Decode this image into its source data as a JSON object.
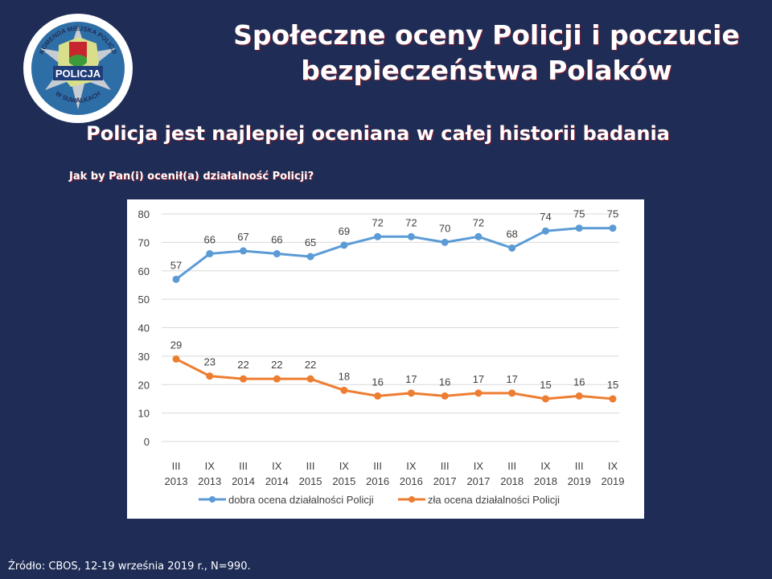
{
  "logo": {
    "top_text": "KOMENDA MIEJSKA POLICJI",
    "center_text": "POLICJA",
    "bottom_text": "W SUWAŁKACH"
  },
  "header": {
    "title_line1": "Społeczne oceny Policji i poczucie",
    "title_line2": "bezpieczeństwa Polaków",
    "subtitle": "Policja jest najlepiej oceniana w całej historii badania",
    "question": "Jak by Pan(i) ocenił(a) działalność Policji?"
  },
  "footer": {
    "source": "Źródło: CBOS, 12-19 września 2019 r., N=990."
  },
  "chart_data": {
    "type": "line",
    "title": "",
    "xlabel": "",
    "ylabel": "",
    "ylim": [
      0,
      80
    ],
    "yticks": [
      0,
      10,
      20,
      30,
      40,
      50,
      60,
      70,
      80
    ],
    "grid": true,
    "legend_position": "bottom",
    "categories": [
      [
        "III",
        "2013"
      ],
      [
        "IX",
        "2013"
      ],
      [
        "III",
        "2014"
      ],
      [
        "IX",
        "2014"
      ],
      [
        "III",
        "2015"
      ],
      [
        "IX",
        "2015"
      ],
      [
        "III",
        "2016"
      ],
      [
        "IX",
        "2016"
      ],
      [
        "III",
        "2017"
      ],
      [
        "IX",
        "2017"
      ],
      [
        "III",
        "2018"
      ],
      [
        "IX",
        "2018"
      ],
      [
        "III",
        "2019"
      ],
      [
        "IX",
        "2019"
      ]
    ],
    "series": [
      {
        "name": "dobra ocena działalności Policji",
        "color": "#5b9bd5",
        "values": [
          57,
          66,
          67,
          66,
          65,
          69,
          72,
          72,
          70,
          72,
          68,
          74,
          75,
          75
        ]
      },
      {
        "name": "zła ocena działalności Policji",
        "color": "#ed7d31",
        "values": [
          29,
          23,
          22,
          22,
          22,
          18,
          16,
          17,
          16,
          17,
          17,
          15,
          16,
          15
        ]
      }
    ]
  }
}
